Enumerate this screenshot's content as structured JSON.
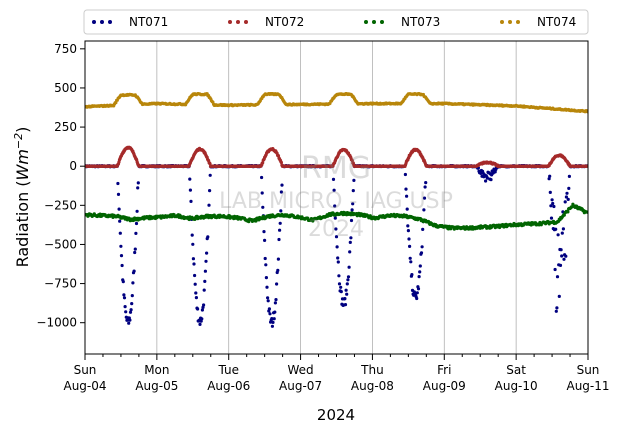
{
  "chart_data": {
    "type": "scatter",
    "xlabel": "2024",
    "ylabel_main": "Radiation (",
    "ylabel_unit": "Wm",
    "ylabel_exp": "−2",
    "ylabel_close": ")",
    "ylim": [
      -1200,
      800
    ],
    "yticks": [
      750,
      500,
      250,
      0,
      -250,
      -500,
      -750,
      -1000
    ],
    "ytick_labels": [
      "750",
      "500",
      "250",
      "0",
      "−250",
      "−500",
      "−750",
      "−1000"
    ],
    "xlim_days": [
      "Aug-04",
      "Aug-11"
    ],
    "xticks": [
      {
        "day": "Sun",
        "date": "Aug-04"
      },
      {
        "day": "Mon",
        "date": "Aug-05"
      },
      {
        "day": "Tue",
        "date": "Aug-06"
      },
      {
        "day": "Wed",
        "date": "Aug-07"
      },
      {
        "day": "Thu",
        "date": "Aug-08"
      },
      {
        "day": "Fri",
        "date": "Aug-09"
      },
      {
        "day": "Sat",
        "date": "Aug-10"
      },
      {
        "day": "Sun",
        "date": "Aug-11"
      }
    ],
    "grid": "vertical",
    "legend_position": "top",
    "watermark": [
      "RMG",
      "LAB MICRO - IAG USP",
      "2024"
    ],
    "series": [
      {
        "name": "NT071",
        "color": "#000080",
        "kind": "net_radiation",
        "night_level": -310,
        "day_minima": [
          -1000,
          -990,
          -1000,
          -880,
          -840,
          -90,
          -950
        ],
        "day_cloudy": [
          false,
          false,
          false,
          false,
          false,
          true,
          true
        ]
      },
      {
        "name": "NT072",
        "color": "#a52a2a",
        "kind": "shortwave_out",
        "night_level": 0,
        "day_peaks": [
          120,
          110,
          110,
          105,
          105,
          25,
          70
        ]
      },
      {
        "name": "NT073",
        "color": "#006400",
        "kind": "longwave_balance",
        "values": [
          -310,
          -315,
          -320,
          -340,
          -330,
          -325,
          -315,
          -335,
          -320,
          -320,
          -330,
          -350,
          -320,
          -310,
          -325,
          -345,
          -310,
          -300,
          -310,
          -330,
          -315,
          -320,
          -340,
          -380,
          -395,
          -395,
          -390,
          -385,
          -375,
          -370,
          -365,
          -355,
          -250,
          -300
        ]
      },
      {
        "name": "NT074",
        "color": "#b8860b",
        "kind": "longwave_in",
        "base": [
          380,
          400,
          390,
          395,
          400,
          400,
          385,
          350
        ],
        "day_peaks": [
          455,
          460,
          460,
          460,
          460
        ]
      }
    ]
  }
}
